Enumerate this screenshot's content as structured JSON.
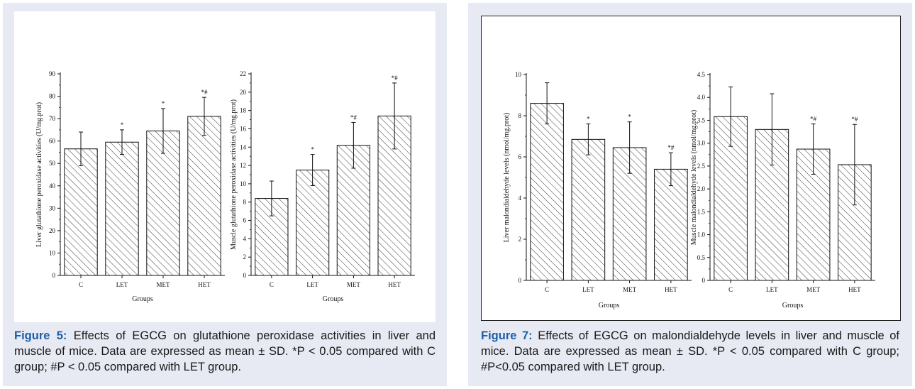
{
  "figure5": {
    "label": "Figure 5:",
    "caption": "Effects of EGCG on glutathione peroxidase activities in liver and muscle of mice. Data are expressed as mean ± SD. *P < 0.05 compared with C group; #P < 0.05 compared with LET group."
  },
  "figure7": {
    "label": "Figure 7:",
    "caption": "Effects of EGCG on malondialdehyde levels in liver and muscle of mice. Data are expressed as mean ± SD. *P < 0.05 compared with C group; #P<0.05 compared with LET group."
  },
  "chart_data": [
    {
      "id": "fig5-liver",
      "type": "bar",
      "title": "",
      "xlabel": "Groups",
      "ylabel": "Liver glutathione peroxidase activities (U/mg.prot)",
      "categories": [
        "C",
        "LET",
        "MET",
        "HET"
      ],
      "values": [
        56.5,
        59.5,
        64.5,
        71
      ],
      "errors": [
        7.5,
        5.5,
        10,
        8.5
      ],
      "annotations": [
        "",
        "*",
        "*",
        "*#"
      ],
      "ylim": [
        0,
        90
      ],
      "yticks": [
        0,
        10,
        20,
        30,
        40,
        50,
        60,
        70,
        80,
        90
      ],
      "pattern": "hatched"
    },
    {
      "id": "fig5-muscle",
      "type": "bar",
      "title": "",
      "xlabel": "Groups",
      "ylabel": "Muscle glutathione peroxidase activities (U/mg.prot)",
      "categories": [
        "C",
        "LET",
        "MET",
        "HET"
      ],
      "values": [
        8.4,
        11.5,
        14.2,
        17.4
      ],
      "errors": [
        1.9,
        1.7,
        2.5,
        3.6
      ],
      "annotations": [
        "",
        "*",
        "*#",
        "*#"
      ],
      "ylim": [
        0,
        22
      ],
      "yticks": [
        0,
        2,
        4,
        6,
        8,
        10,
        12,
        14,
        16,
        18,
        20,
        22
      ],
      "pattern": "hatched"
    },
    {
      "id": "fig7-liver",
      "type": "bar",
      "title": "",
      "xlabel": "Groups",
      "ylabel": "Liver malondialdehyde levels (nmol/mg.prot)",
      "categories": [
        "C",
        "LET",
        "MET",
        "HET"
      ],
      "values": [
        8.6,
        6.85,
        6.45,
        5.4
      ],
      "errors": [
        1.0,
        0.75,
        1.25,
        0.8
      ],
      "annotations": [
        "",
        "*",
        "*",
        "*#"
      ],
      "ylim": [
        0,
        10
      ],
      "yticks": [
        0,
        2,
        4,
        6,
        8,
        10
      ],
      "pattern": "hatched"
    },
    {
      "id": "fig7-muscle",
      "type": "bar",
      "title": "",
      "xlabel": "Groups",
      "ylabel": "Muscle malondialdehyde levels (nmol/mg.prot)",
      "categories": [
        "C",
        "LET",
        "MET",
        "HET"
      ],
      "values": [
        3.58,
        3.3,
        2.87,
        2.53
      ],
      "errors": [
        0.65,
        0.78,
        0.55,
        0.88
      ],
      "annotations": [
        "",
        "",
        "*#",
        "*#"
      ],
      "ylim": [
        0,
        4.5
      ],
      "yticks": [
        "0",
        "0.5",
        "1.0",
        "1.5",
        "2.0",
        "2.5",
        "3.0",
        "3.5",
        "4.0",
        "4.5"
      ],
      "pattern": "hatched"
    }
  ]
}
